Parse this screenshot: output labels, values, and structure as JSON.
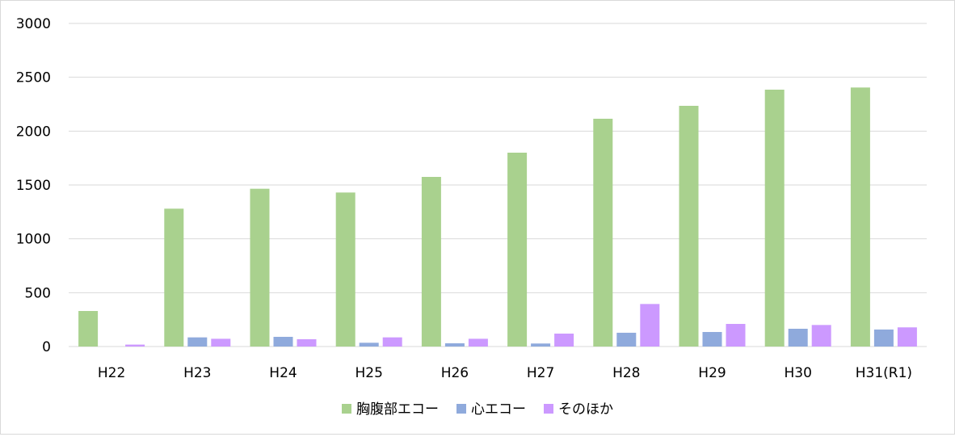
{
  "chart_data": {
    "type": "bar",
    "title": "",
    "xlabel": "",
    "ylabel": "",
    "ylim": [
      0,
      3000
    ],
    "yticks": [
      0,
      500,
      1000,
      1500,
      2000,
      2500,
      3000
    ],
    "grid": true,
    "legend_position": "bottom",
    "categories": [
      "H22",
      "H23",
      "H24",
      "H25",
      "H26",
      "H27",
      "H28",
      "H29",
      "H30",
      "H31(R1)"
    ],
    "series": [
      {
        "name": "胸腹部エコー",
        "color": "#a9d18e",
        "values": [
          330,
          1280,
          1465,
          1430,
          1575,
          1800,
          2115,
          2235,
          2385,
          2405
        ]
      },
      {
        "name": "心エコー",
        "color": "#8faadc",
        "values": [
          0,
          85,
          90,
          35,
          30,
          28,
          128,
          135,
          165,
          158
        ]
      },
      {
        "name": "そのほか",
        "color": "#cc99ff",
        "values": [
          18,
          72,
          68,
          85,
          72,
          120,
          395,
          210,
          200,
          178
        ]
      }
    ]
  }
}
